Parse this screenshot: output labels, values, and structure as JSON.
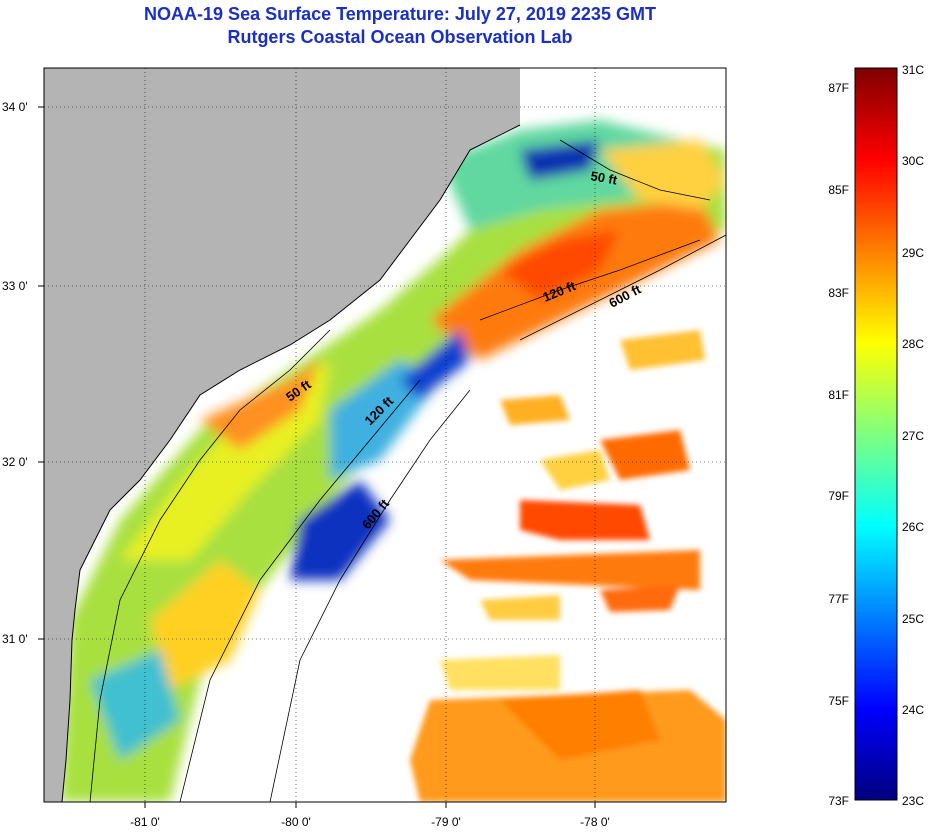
{
  "header": {
    "title": "NOAA-19 Sea Surface Temperature:  July 27, 2019 2235 GMT",
    "subtitle": "Rutgers Coastal Ocean Observation Lab"
  },
  "map": {
    "lon_ticks": [
      "-81 0'",
      "-80 0'",
      "-79 0'",
      "-78 0'"
    ],
    "lat_ticks": [
      "34 0'",
      "33 0'",
      "32 0'",
      "31 0'"
    ],
    "contours": [
      "50 ft",
      "120 ft",
      "600 ft",
      "50 ft",
      "120 ft",
      "600 ft"
    ]
  },
  "colorbar": {
    "celsius": [
      "31C",
      "30C",
      "29C",
      "28C",
      "27C",
      "26C",
      "25C",
      "24C",
      "23C"
    ],
    "fahrenheit": [
      "87F",
      "85F",
      "83F",
      "81F",
      "79F",
      "77F",
      "75F",
      "73F"
    ],
    "range_c": [
      23,
      31
    ],
    "colors": [
      "#00007f",
      "#0000ff",
      "#007fff",
      "#00ffff",
      "#7fff7f",
      "#ffff00",
      "#ff7f00",
      "#ff0000",
      "#7f0000"
    ]
  },
  "colors": {
    "land": "#b4b4b4",
    "cloud": "#ffffff",
    "title": "#1a2fc4"
  }
}
